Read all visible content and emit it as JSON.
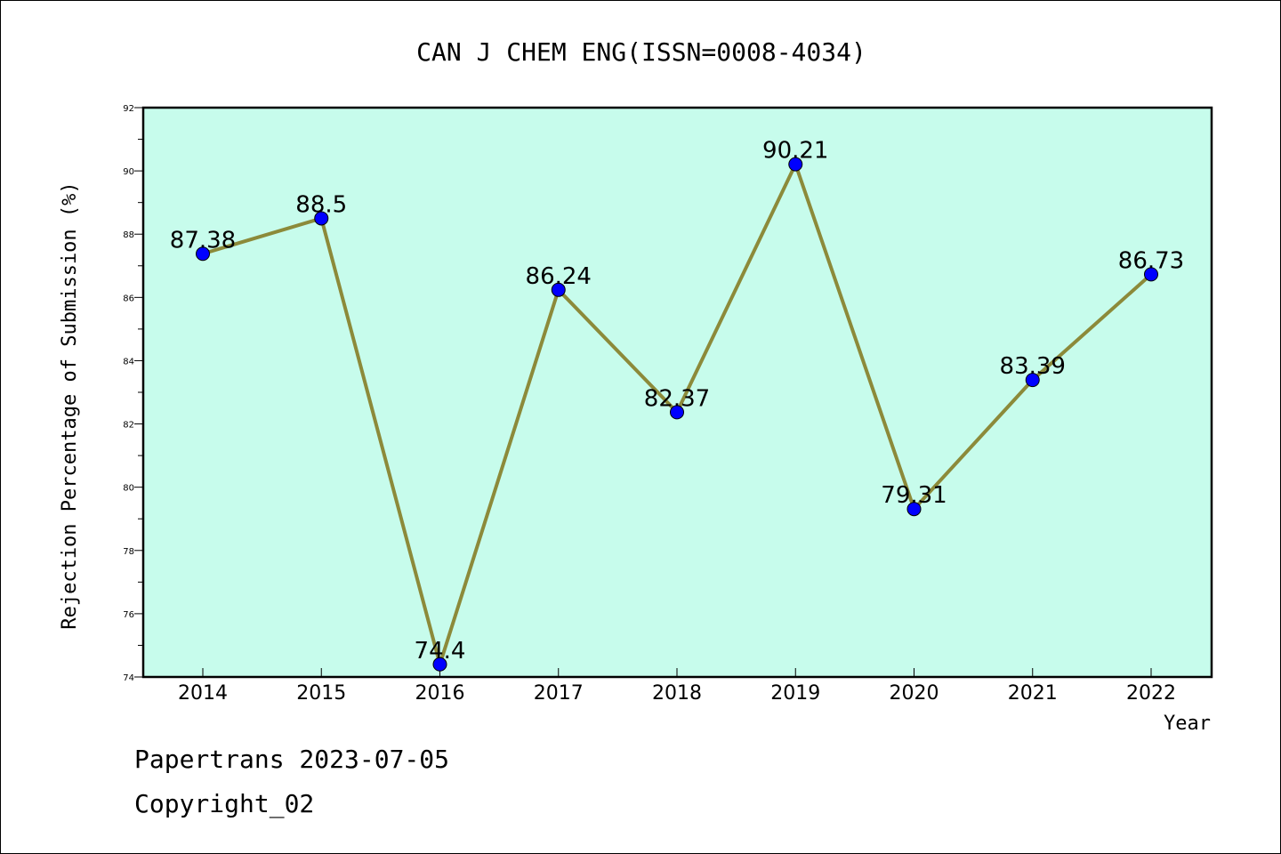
{
  "chart_data": {
    "type": "line",
    "title": "CAN J CHEM ENG(ISSN=0008-4034)",
    "xlabel": "Year",
    "ylabel": "Rejection Percentage of Submission (%)",
    "categories": [
      "2014",
      "2015",
      "2016",
      "2017",
      "2018",
      "2019",
      "2020",
      "2021",
      "2022"
    ],
    "values": [
      87.38,
      88.5,
      74.4,
      86.24,
      82.37,
      90.21,
      79.31,
      83.39,
      86.73
    ],
    "data_labels": [
      "87.38",
      "88.5",
      "74.4",
      "86.24",
      "82.37",
      "90.21",
      "79.31",
      "83.39",
      "86.73"
    ],
    "ylim": [
      74,
      92
    ],
    "yticks": [
      "74",
      "76",
      "78",
      "80",
      "82",
      "84",
      "86",
      "88",
      "90",
      "92"
    ],
    "grid": false,
    "legend": "none",
    "colors": {
      "plot_background": "#c7fcec",
      "line": "#8c8a3a",
      "marker": "#0000ff",
      "axis": "#000000"
    }
  },
  "footer": {
    "line1": "Papertrans 2023-07-05",
    "line2": "Copyright_02"
  }
}
